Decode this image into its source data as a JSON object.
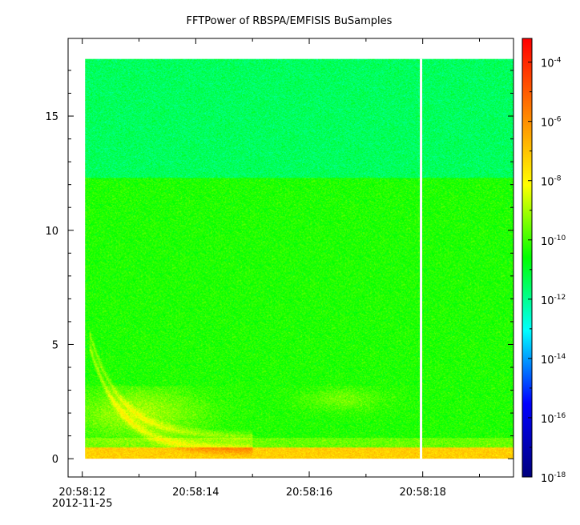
{
  "chart_data": {
    "type": "heatmap",
    "title": "FFTPower of RBSPA/EMFISIS  BuSamples",
    "xlabel": "",
    "ylabel": "",
    "x_ticks": [
      {
        "label": "20:58:12",
        "sub": "2012-11-25",
        "t": 0
      },
      {
        "label": "20:58:14",
        "sub": "",
        "t": 2
      },
      {
        "label": "20:58:16",
        "sub": "",
        "t": 4
      },
      {
        "label": "20:58:18",
        "sub": "",
        "t": 6
      }
    ],
    "xlim_seconds": [
      -0.25,
      7.6
    ],
    "y_ticks": [
      0,
      5,
      10,
      15
    ],
    "ylim": [
      -0.8,
      18.4
    ],
    "data_extent": {
      "x_start": 0.05,
      "x_end": 7.6,
      "y_min": 0.0,
      "y_max": 17.5
    },
    "data_gap_x": 5.97,
    "colorbar": {
      "scale": "log",
      "range_exponents": [
        -18,
        -3.2
      ],
      "tick_exponents": [
        -4,
        -6,
        -8,
        -10,
        -12,
        -14,
        -16,
        -18
      ],
      "base": "10",
      "colormap": [
        "#00007f",
        "#0000ff",
        "#00ffff",
        "#00ff00",
        "#ffff00",
        "#ff7f00",
        "#ff0000"
      ]
    },
    "regions": [
      {
        "y_from": 12.3,
        "y_to": 17.5,
        "level_exp": -11.5,
        "note": ""
      },
      {
        "y_from": 0.5,
        "y_to": 12.3,
        "level_exp": -10.3,
        "note": ""
      },
      {
        "y_from": 0.0,
        "y_to": 0.5,
        "level_exp": -7.2,
        "note": ""
      }
    ]
  }
}
